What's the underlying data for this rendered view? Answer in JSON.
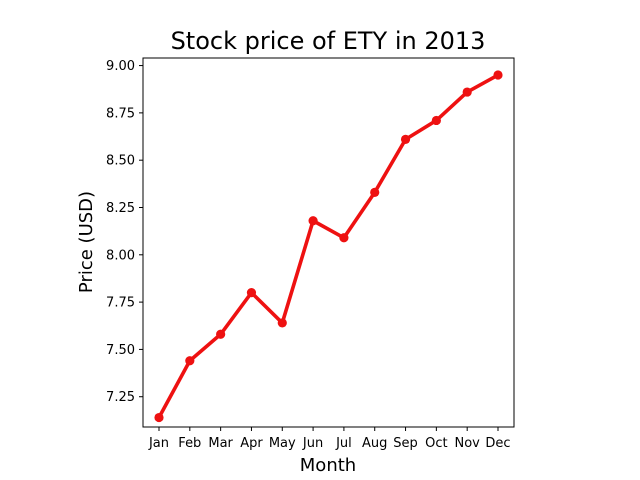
{
  "chart_data": {
    "type": "line",
    "title": "Stock price of ETY in 2013",
    "xlabel": "Month",
    "ylabel": "Price (USD)",
    "categories": [
      "Jan",
      "Feb",
      "Mar",
      "Apr",
      "May",
      "Jun",
      "Jul",
      "Aug",
      "Sep",
      "Oct",
      "Nov",
      "Dec"
    ],
    "series": [
      {
        "values": [
          7.14,
          7.44,
          7.58,
          7.8,
          7.64,
          8.18,
          8.09,
          8.33,
          8.61,
          8.71,
          8.86,
          8.95
        ],
        "color": "#ee1111",
        "marker": "circle"
      }
    ],
    "ylim": [
      7.09,
      9.04
    ],
    "yticks": [
      "7.25",
      "7.50",
      "7.75",
      "8.00",
      "8.25",
      "8.50",
      "8.75",
      "9.00"
    ],
    "grid": false,
    "legend": false
  }
}
